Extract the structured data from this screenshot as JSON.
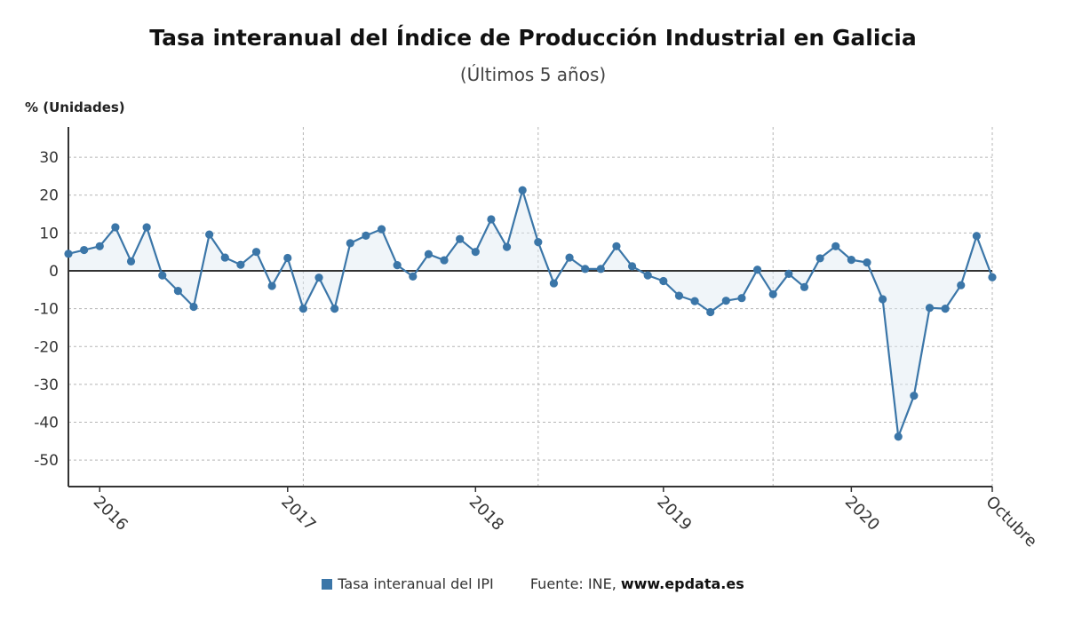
{
  "chart_data": {
    "type": "area",
    "title": "Tasa interanual del Índice de Producción Industrial en Galicia",
    "subtitle": "(Últimos 5 años)",
    "ylabel": "% (Unidades)",
    "ylim": [
      -57,
      38
    ],
    "yticks": [
      30,
      20,
      10,
      0,
      -10,
      -20,
      -30,
      -40,
      -50
    ],
    "xlim": [
      0,
      59
    ],
    "xticks": [
      {
        "label": "2016",
        "x": 2
      },
      {
        "label": "2017",
        "x": 14
      },
      {
        "label": "2018",
        "x": 26
      },
      {
        "label": "2019",
        "x": 38
      },
      {
        "label": "2020",
        "x": 50
      },
      {
        "label": "Octubre",
        "x": 59
      }
    ],
    "grid": true,
    "legend_position": "bottom",
    "series": [
      {
        "name": "Tasa interanual del IPI",
        "color": "#3b76a8",
        "values": [
          4.5,
          5.5,
          6.5,
          11.5,
          2.5,
          11.5,
          -1.2,
          -5.3,
          -9.5,
          9.6,
          3.5,
          1.6,
          5,
          -4,
          3.4,
          -10,
          -1.8,
          -10,
          7.3,
          9.3,
          11,
          1.5,
          -1.5,
          4.4,
          2.8,
          8.4,
          5,
          13.6,
          6.3,
          21.3,
          7.6,
          -3.3,
          3.5,
          0.5,
          0.5,
          6.5,
          1.2,
          -1.2,
          -2.7,
          -6.6,
          -8,
          -10.9,
          -7.9,
          -7.2,
          0.3,
          -6.2,
          -0.8,
          -4.3,
          3.3,
          6.5,
          2.9,
          2.2,
          -7.5,
          -43.8,
          -33,
          -9.8,
          -10,
          -3.8,
          9.2,
          -1.7
        ]
      }
    ]
  },
  "legend": {
    "series_label": "Tasa interanual del IPI",
    "source_prefix": "Fuente: INE, ",
    "source_url": "www.epdata.es"
  }
}
